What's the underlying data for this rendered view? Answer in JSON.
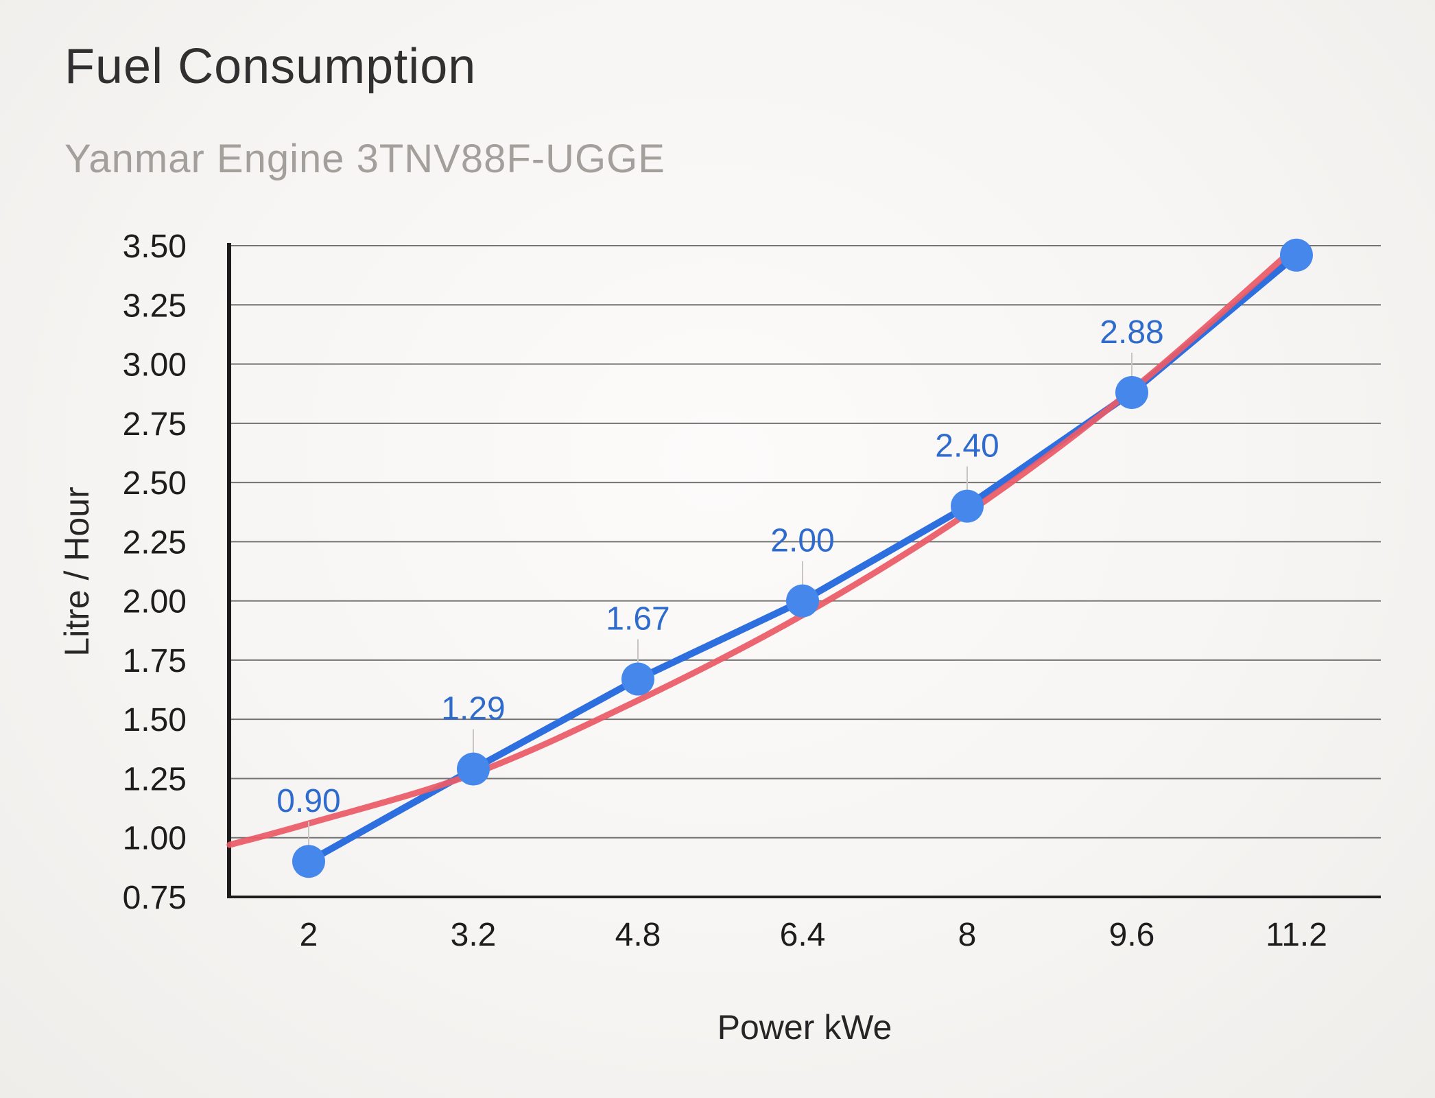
{
  "chart_data": {
    "type": "line",
    "title": "Fuel Consumption",
    "subtitle": "Yanmar Engine 3TNV88F-UGGE",
    "xlabel": "Power kWe",
    "ylabel": "Litre / Hour",
    "categories": [
      "2",
      "3.2",
      "4.8",
      "6.4",
      "8",
      "9.6",
      "11.2"
    ],
    "ylim": [
      0.75,
      3.5
    ],
    "ytick_step": 0.25,
    "y_ticks": [
      "0.75",
      "1.00",
      "1.25",
      "1.50",
      "1.75",
      "2.00",
      "2.25",
      "2.50",
      "2.75",
      "3.00",
      "3.25",
      "3.50"
    ],
    "grid": "horizontal-only",
    "legend": "none",
    "colors": {
      "grid": "#5c5c5c",
      "axis": "#1c1c1c",
      "tick_text": "#1d1d1d",
      "leader_line": "#c9c6c2",
      "background": "#f7f5f3"
    },
    "series": [
      {
        "name": "Fuel consumption",
        "type": "line-with-points",
        "color": "#2e6fe0",
        "point_color": "#4687ec",
        "label_color": "#2e6bcd",
        "values": [
          0.9,
          1.29,
          1.67,
          2.0,
          2.4,
          2.88,
          3.46
        ],
        "point_labels": [
          "0.90",
          "1.29",
          "1.67",
          "2.00",
          "2.40",
          "2.88",
          ""
        ]
      }
    ],
    "trendline": {
      "name": "trendline",
      "style": "smooth",
      "color": "#eb5a67",
      "points": [
        [
          -0.48,
          0.97
        ],
        [
          0,
          1.06
        ],
        [
          1,
          1.27
        ],
        [
          2,
          1.58
        ],
        [
          3,
          1.94
        ],
        [
          4,
          2.37
        ],
        [
          5,
          2.89
        ],
        [
          6.02,
          3.51
        ]
      ]
    }
  }
}
